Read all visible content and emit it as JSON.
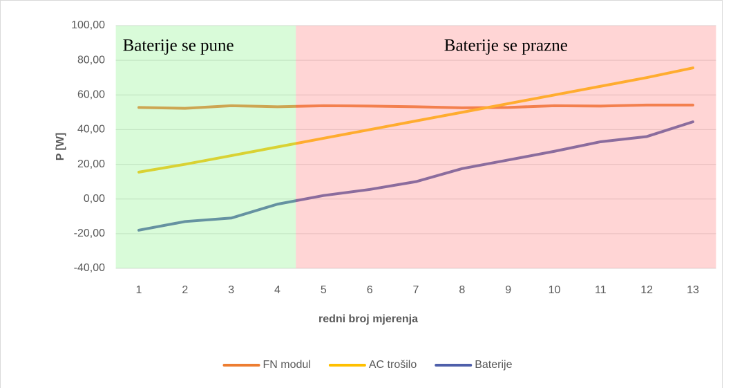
{
  "chart_data": {
    "type": "line",
    "categories": [
      "1",
      "2",
      "3",
      "4",
      "5",
      "6",
      "7",
      "8",
      "9",
      "10",
      "11",
      "12",
      "13"
    ],
    "series": [
      {
        "name": "FN modul",
        "color": "#ed7d31",
        "values": [
          52.8,
          52.3,
          53.8,
          53.2,
          53.8,
          53.6,
          53.2,
          52.6,
          52.8,
          53.8,
          53.6,
          54.2,
          54.2
        ]
      },
      {
        "name": "AC trošilo",
        "color": "#ffc000",
        "values": [
          15.5,
          20,
          25,
          30,
          35,
          40,
          45,
          50,
          55,
          60,
          65,
          70,
          75.6
        ]
      },
      {
        "name": "Baterije",
        "color": "#4e5faa",
        "values": [
          -18,
          -13,
          -11,
          -3,
          2,
          5.5,
          10,
          17.5,
          22.5,
          27.5,
          33,
          36,
          44.5
        ]
      }
    ],
    "regions": [
      {
        "label": "Baterije se pune",
        "color": "#93f493",
        "xrange": [
          0.5,
          4.4
        ]
      },
      {
        "label": "Baterije se prazne",
        "color": "#ff8787",
        "xrange": [
          4.4,
          13.5
        ]
      }
    ],
    "xlabel": "redni broj mjerenja",
    "ylabel": "P [W]",
    "ylim": [
      -40,
      100
    ],
    "yticks": [
      {
        "value": -40,
        "label": "-40,00"
      },
      {
        "value": -20,
        "label": "-20,00"
      },
      {
        "value": 0,
        "label": "0,00"
      },
      {
        "value": 20,
        "label": "20,00"
      },
      {
        "value": 40,
        "label": "40,00"
      },
      {
        "value": 60,
        "label": "60,00"
      },
      {
        "value": 80,
        "label": "80,00"
      },
      {
        "value": 100,
        "label": "100,00"
      }
    ],
    "grid": true,
    "legend": "bottom"
  }
}
